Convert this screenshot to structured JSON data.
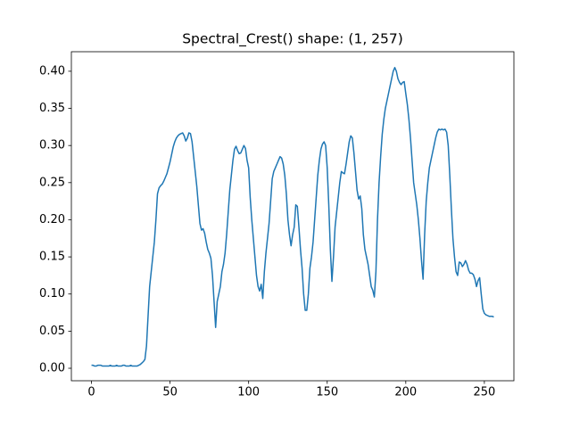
{
  "chart_data": {
    "type": "line",
    "title": "Spectral_Crest() shape: (1, 257)",
    "xlim": [
      -12.8,
      268.8
    ],
    "xticks": [
      0,
      50,
      100,
      150,
      200,
      250
    ],
    "ylim": [
      -0.0168,
      0.4263
    ],
    "yticks": [
      {
        "value": 0,
        "label": "0.00"
      },
      {
        "value": 0.05,
        "label": "0.05"
      },
      {
        "value": 0.1,
        "label": "0.10"
      },
      {
        "value": 0.15,
        "label": "0.15"
      },
      {
        "value": 0.2,
        "label": "0.20"
      },
      {
        "value": 0.25,
        "label": "0.25"
      },
      {
        "value": 0.3,
        "label": "0.30"
      },
      {
        "value": 0.35,
        "label": "0.35"
      },
      {
        "value": 0.4,
        "label": "0.40"
      }
    ],
    "color": "#1f77b4",
    "values": [
      0.004,
      0.004,
      0.003,
      0.003,
      0.004,
      0.004,
      0.004,
      0.003,
      0.003,
      0.003,
      0.003,
      0.003,
      0.004,
      0.003,
      0.003,
      0.003,
      0.004,
      0.003,
      0.003,
      0.003,
      0.004,
      0.004,
      0.003,
      0.003,
      0.003,
      0.004,
      0.003,
      0.003,
      0.003,
      0.003,
      0.004,
      0.005,
      0.007,
      0.009,
      0.012,
      0.03,
      0.07,
      0.11,
      0.13,
      0.15,
      0.17,
      0.2,
      0.235,
      0.243,
      0.246,
      0.248,
      0.252,
      0.257,
      0.262,
      0.27,
      0.278,
      0.288,
      0.298,
      0.305,
      0.31,
      0.313,
      0.315,
      0.316,
      0.317,
      0.313,
      0.306,
      0.31,
      0.317,
      0.316,
      0.305,
      0.285,
      0.265,
      0.245,
      0.22,
      0.195,
      0.186,
      0.188,
      0.182,
      0.17,
      0.16,
      0.155,
      0.148,
      0.125,
      0.09,
      0.055,
      0.09,
      0.1,
      0.11,
      0.13,
      0.14,
      0.155,
      0.18,
      0.21,
      0.24,
      0.26,
      0.28,
      0.295,
      0.299,
      0.293,
      0.289,
      0.29,
      0.295,
      0.3,
      0.296,
      0.28,
      0.27,
      0.23,
      0.2,
      0.175,
      0.15,
      0.125,
      0.11,
      0.104,
      0.113,
      0.094,
      0.13,
      0.155,
      0.175,
      0.195,
      0.225,
      0.255,
      0.265,
      0.27,
      0.275,
      0.28,
      0.285,
      0.283,
      0.275,
      0.26,
      0.235,
      0.2,
      0.18,
      0.165,
      0.18,
      0.19,
      0.22,
      0.218,
      0.19,
      0.16,
      0.135,
      0.1,
      0.078,
      0.078,
      0.1,
      0.135,
      0.15,
      0.17,
      0.2,
      0.23,
      0.26,
      0.28,
      0.295,
      0.302,
      0.305,
      0.3,
      0.27,
      0.22,
      0.16,
      0.117,
      0.15,
      0.19,
      0.21,
      0.23,
      0.25,
      0.265,
      0.263,
      0.262,
      0.275,
      0.29,
      0.305,
      0.313,
      0.31,
      0.29,
      0.265,
      0.24,
      0.228,
      0.232,
      0.215,
      0.18,
      0.16,
      0.15,
      0.14,
      0.125,
      0.11,
      0.105,
      0.096,
      0.13,
      0.2,
      0.25,
      0.285,
      0.315,
      0.335,
      0.35,
      0.36,
      0.37,
      0.38,
      0.39,
      0.4,
      0.405,
      0.4,
      0.39,
      0.385,
      0.382,
      0.385,
      0.386,
      0.37,
      0.355,
      0.335,
      0.31,
      0.28,
      0.25,
      0.235,
      0.22,
      0.2,
      0.175,
      0.145,
      0.12,
      0.18,
      0.225,
      0.25,
      0.27,
      0.28,
      0.29,
      0.3,
      0.31,
      0.318,
      0.322,
      0.321,
      0.322,
      0.321,
      0.322,
      0.318,
      0.3,
      0.26,
      0.215,
      0.175,
      0.15,
      0.13,
      0.125,
      0.143,
      0.142,
      0.137,
      0.14,
      0.145,
      0.14,
      0.132,
      0.128,
      0.128,
      0.126,
      0.12,
      0.11,
      0.118,
      0.122,
      0.1,
      0.08,
      0.074,
      0.072,
      0.071,
      0.07,
      0.07,
      0.07,
      0.069
    ]
  }
}
